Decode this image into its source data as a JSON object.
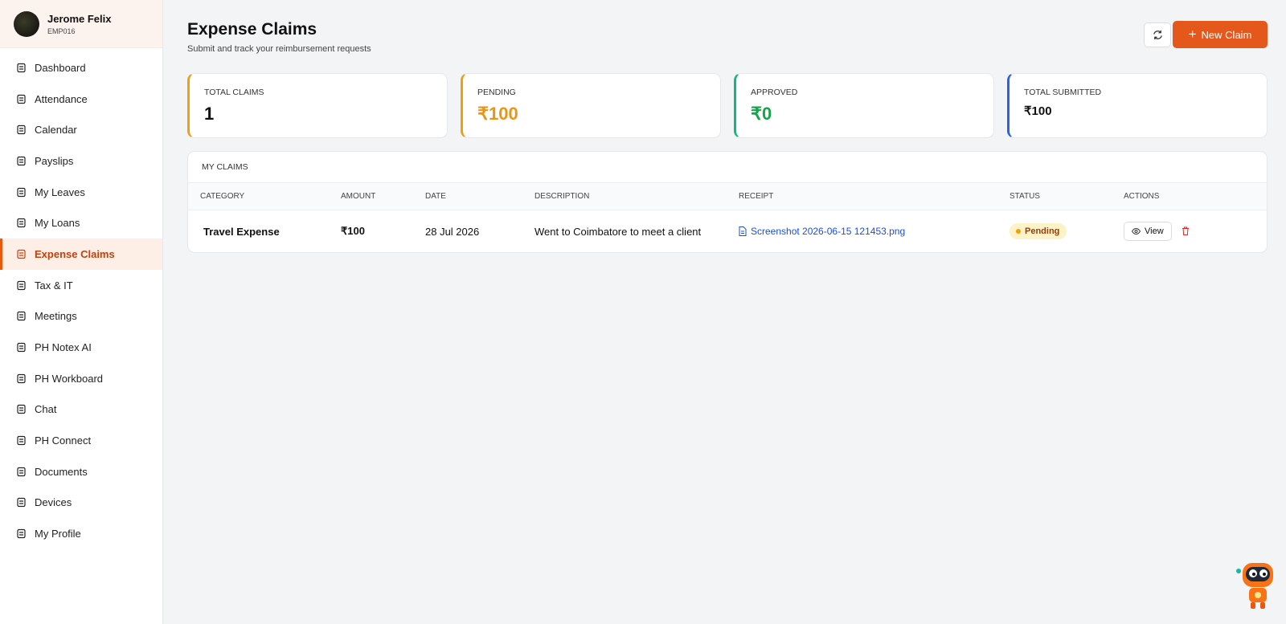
{
  "user": {
    "name": "Jerome Felix",
    "id": "EMP016"
  },
  "nav": [
    "Dashboard",
    "Attendance",
    "Calendar",
    "Payslips",
    "My Leaves",
    "My Loans",
    "Expense Claims",
    "Tax & IT",
    "Meetings",
    "PH Notex AI",
    "PH Workboard",
    "Chat",
    "PH Connect",
    "Documents",
    "Devices",
    "My Profile"
  ],
  "header": {
    "title": "Expense Claims",
    "subtitle": "Submit and track your reimbursement requests",
    "new_claim": "New Claim"
  },
  "stats": [
    {
      "label": "TOTAL CLAIMS",
      "value": "1"
    },
    {
      "label": "PENDING",
      "value": "₹100"
    },
    {
      "label": "APPROVED",
      "value": "₹0"
    },
    {
      "label": "TOTAL SUBMITTED",
      "value": "₹100"
    }
  ],
  "table": {
    "title": "MY CLAIMS",
    "columns": [
      "CATEGORY",
      "AMOUNT",
      "DATE",
      "DESCRIPTION",
      "RECEIPT",
      "STATUS",
      "ACTIONS"
    ],
    "rows": [
      {
        "category": "Travel Expense",
        "amount": "₹100",
        "date": "28 Jul 2026",
        "description": "Went to Coimbatore to meet a client",
        "receipt": "Screenshot 2026-06-15 121453.png",
        "status": "Pending",
        "action": "View"
      }
    ]
  }
}
